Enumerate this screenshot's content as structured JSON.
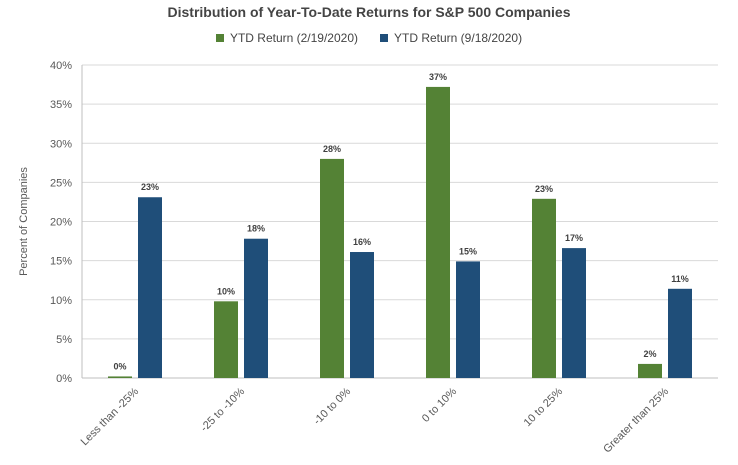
{
  "chart_data": {
    "type": "bar",
    "title": "Distribution of Year-To-Date Returns for S&P 500 Companies",
    "ylabel": "Percent of Companies",
    "xlabel": "",
    "ylim": [
      0,
      40
    ],
    "y_ticks": [
      "0%",
      "5%",
      "10%",
      "15%",
      "20%",
      "25%",
      "30%",
      "35%",
      "40%"
    ],
    "y_tick_values": [
      0,
      5,
      10,
      15,
      20,
      25,
      30,
      35,
      40
    ],
    "categories": [
      "Less than -25%",
      "-25 to -10%",
      "-10 to 0%",
      "0 to 10%",
      "10 to 25%",
      "Greater than 25%"
    ],
    "series": [
      {
        "name": "YTD Return (2/19/2020)",
        "color": "#548235",
        "values": [
          0.2,
          9.8,
          28.0,
          37.2,
          22.9,
          1.8
        ],
        "labels": [
          "0%",
          "10%",
          "28%",
          "37%",
          "23%",
          "2%"
        ]
      },
      {
        "name": "YTD Return (9/18/2020)",
        "color": "#1f4e79",
        "values": [
          23.1,
          17.8,
          16.1,
          14.9,
          16.6,
          11.4
        ],
        "labels": [
          "23%",
          "18%",
          "16%",
          "15%",
          "17%",
          "11%"
        ]
      }
    ],
    "grid": true,
    "legend_position": "top"
  }
}
